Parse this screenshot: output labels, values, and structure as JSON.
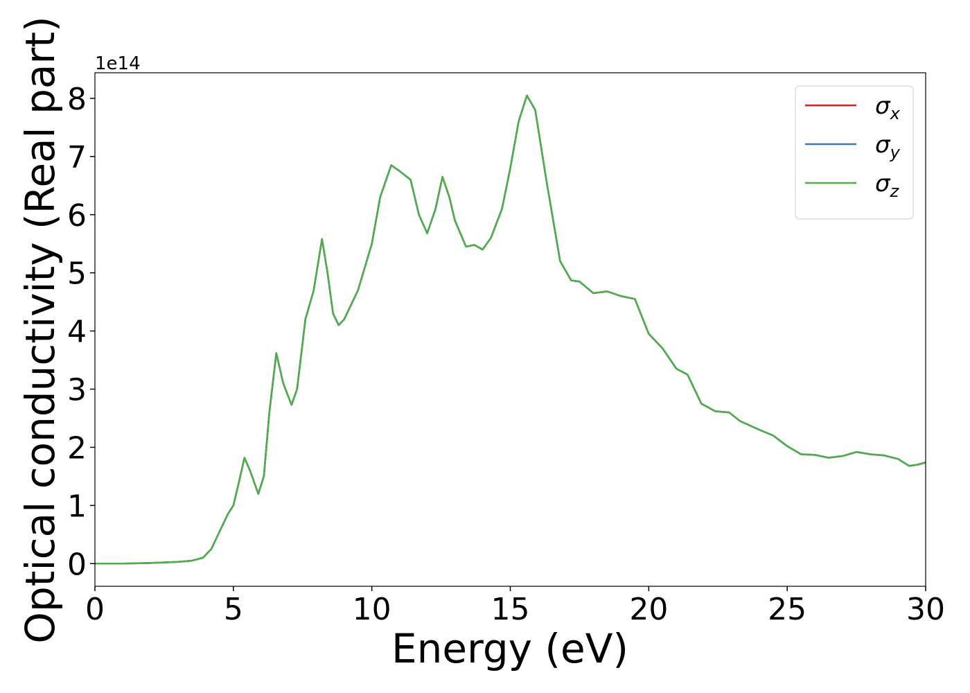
{
  "chart_data": {
    "type": "line",
    "x_label": "Energy (eV)",
    "y_label": "Optical conductivity (Real part)",
    "y_offset_label": "1e14",
    "xlim": [
      0,
      30
    ],
    "xticks": [
      0,
      5,
      10,
      15,
      20,
      25,
      30
    ],
    "ylim": [
      -0.39,
      8.44
    ],
    "yticks": [
      0,
      1,
      2,
      3,
      4,
      5,
      6,
      7,
      8
    ],
    "legend_position": "upper right",
    "x": [
      0,
      1,
      2,
      3,
      3.5,
      3.9,
      4.2,
      4.5,
      4.8,
      5.0,
      5.2,
      5.4,
      5.6,
      5.9,
      6.1,
      6.3,
      6.55,
      6.8,
      7.1,
      7.3,
      7.6,
      7.9,
      8.2,
      8.4,
      8.6,
      8.8,
      9.0,
      9.5,
      10.0,
      10.3,
      10.7,
      11.0,
      11.4,
      11.7,
      12.0,
      12.3,
      12.55,
      12.8,
      13.0,
      13.4,
      13.7,
      14.0,
      14.3,
      14.7,
      15.0,
      15.3,
      15.6,
      15.9,
      16.3,
      16.8,
      17.2,
      17.5,
      18.0,
      18.5,
      19.0,
      19.5,
      20.0,
      20.5,
      21.0,
      21.4,
      21.9,
      22.4,
      22.9,
      23.3,
      24.0,
      24.5,
      25.0,
      25.5,
      26.0,
      26.5,
      27.0,
      27.5,
      28.0,
      28.5,
      29.0,
      29.4,
      29.7,
      30.0
    ],
    "series": [
      {
        "name": "σx",
        "color": "#e41a1c",
        "values": [
          0,
          0,
          0.01,
          0.03,
          0.05,
          0.1,
          0.25,
          0.55,
          0.85,
          1.0,
          1.4,
          1.82,
          1.6,
          1.2,
          1.5,
          2.6,
          3.62,
          3.1,
          2.73,
          3.0,
          4.2,
          4.7,
          5.58,
          5.0,
          4.3,
          4.1,
          4.2,
          4.7,
          5.5,
          6.3,
          6.85,
          6.75,
          6.6,
          6.0,
          5.68,
          6.1,
          6.65,
          6.3,
          5.9,
          5.45,
          5.48,
          5.4,
          5.6,
          6.1,
          6.8,
          7.6,
          8.05,
          7.8,
          6.6,
          5.2,
          4.87,
          4.85,
          4.65,
          4.68,
          4.6,
          4.55,
          3.95,
          3.7,
          3.35,
          3.25,
          2.75,
          2.62,
          2.6,
          2.45,
          2.3,
          2.2,
          2.02,
          1.88,
          1.87,
          1.82,
          1.85,
          1.92,
          1.88,
          1.86,
          1.8,
          1.68,
          1.7,
          1.74
        ]
      },
      {
        "name": "σy",
        "color": "#377eb8",
        "values": [
          0,
          0,
          0.01,
          0.03,
          0.05,
          0.1,
          0.25,
          0.55,
          0.85,
          1.0,
          1.4,
          1.82,
          1.6,
          1.2,
          1.5,
          2.6,
          3.62,
          3.1,
          2.73,
          3.0,
          4.2,
          4.7,
          5.58,
          5.0,
          4.3,
          4.1,
          4.2,
          4.7,
          5.5,
          6.3,
          6.85,
          6.75,
          6.6,
          6.0,
          5.68,
          6.1,
          6.65,
          6.3,
          5.9,
          5.45,
          5.48,
          5.4,
          5.6,
          6.1,
          6.8,
          7.6,
          8.05,
          7.8,
          6.6,
          5.2,
          4.87,
          4.85,
          4.65,
          4.68,
          4.6,
          4.55,
          3.95,
          3.7,
          3.35,
          3.25,
          2.75,
          2.62,
          2.6,
          2.45,
          2.3,
          2.2,
          2.02,
          1.88,
          1.87,
          1.82,
          1.85,
          1.92,
          1.88,
          1.86,
          1.8,
          1.68,
          1.7,
          1.74
        ]
      },
      {
        "name": "σz",
        "color": "#4daf4a",
        "values": [
          0,
          0,
          0.01,
          0.03,
          0.05,
          0.1,
          0.25,
          0.55,
          0.85,
          1.0,
          1.4,
          1.82,
          1.6,
          1.2,
          1.5,
          2.6,
          3.62,
          3.1,
          2.73,
          3.0,
          4.2,
          4.7,
          5.58,
          5.0,
          4.3,
          4.1,
          4.2,
          4.7,
          5.5,
          6.3,
          6.85,
          6.75,
          6.6,
          6.0,
          5.68,
          6.1,
          6.65,
          6.3,
          5.9,
          5.45,
          5.48,
          5.4,
          5.6,
          6.1,
          6.8,
          7.6,
          8.05,
          7.8,
          6.6,
          5.2,
          4.87,
          4.85,
          4.65,
          4.68,
          4.6,
          4.55,
          3.95,
          3.7,
          3.35,
          3.25,
          2.75,
          2.62,
          2.6,
          2.45,
          2.3,
          2.2,
          2.02,
          1.88,
          1.87,
          1.82,
          1.85,
          1.92,
          1.88,
          1.86,
          1.8,
          1.68,
          1.7,
          1.74
        ]
      }
    ]
  }
}
